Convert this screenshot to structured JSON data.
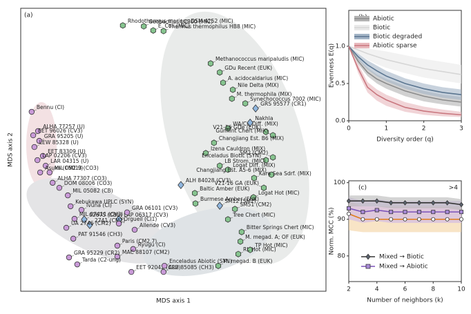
{
  "chart_data": [
    {
      "type": "scatter",
      "label": "(a)",
      "xlabel": "MDS axis 1",
      "ylabel": "MDS axis 2",
      "xlim": [
        0,
        100
      ],
      "ylim": [
        0,
        100
      ],
      "series": [
        {
          "marker": "hexagon",
          "color": "#86c48f",
          "labels": [
            "Rhodothermus marinus DSM 4252 (MIC)",
            "Geobacillus LC300 (MIC)",
            "E. Coli (MIC)",
            "Thermus thermophilus HB8 (MIC)",
            "Methanococcus maripaludis (MIC)",
            "GDu Recent (EUK)",
            "A. acidocaldarius (MIC)",
            "Nile Delta (MIX)",
            "M. thermophila (MIX)",
            "Synechococcus 7002 (MIC)",
            "WA/CC Diff. (MIX)",
            "V21-16 GDe (EUK)",
            "Gunflint Chert (MIX)",
            "Changjiang Est. B6 (MIX)",
            "SM2 (CM2)",
            "Izena Cauldron (MIX)",
            "Enceladus Biotic (SYN)",
            "LB Strom. (MIC)",
            "Logat Diff. (MIX)",
            "Changjiang Est. A5-6 (MIX)",
            "Kara Sea Sdrf. (MIX)",
            "V21-16 GA (EUK)",
            "Baltic Amber (EUK)",
            "Logat Hot (MIC)",
            "Burmese Amber (EUK)",
            "SM51 (CM2)",
            "Tree Chert (MIC)",
            "Bitter Springs Chert (MIC)",
            "M. megad. A; OF (EUK)",
            "TP Hot (MIC)",
            "RL Hot (MIC)",
            "M. megad. B (EUK)"
          ],
          "x": [
            33.6,
            40.5,
            43.6,
            47.0,
            62.5,
            65.5,
            66.6,
            69.8,
            69.5,
            73.9,
            68.2,
            80.7,
            83.0,
            63.6,
            83.0,
            60.9,
            80.7,
            65.5,
            68.2,
            82.5,
            76.8,
            80.0,
            57.3,
            76.6,
            57.5,
            70.5,
            68.2,
            72.7,
            72.3,
            75.5,
            71.6,
            65.0
          ],
          "y": [
            94.6,
            94.3,
            92.8,
            92.6,
            81.0,
            77.8,
            74.1,
            71.6,
            68.4,
            66.7,
            57.8,
            56.5,
            55.3,
            52.6,
            47.4,
            48.9,
            46.4,
            44.4,
            43.0,
            41.2,
            40.0,
            36.5,
            34.6,
            33.1,
            30.9,
            28.9,
            25.2,
            20.7,
            17.3,
            14.3,
            12.8,
            8.6
          ]
        },
        {
          "marker": "diamond",
          "color": "#8fb6de",
          "labels": [
            "GRS 95577 (CR1)",
            "Nakhla",
            "ALH 84028 (CV3)",
            "SM12 (SM2)",
            "LAP 06317 (CV3)",
            "02675 (CBb)",
            "2741 (CM2)"
          ],
          "x": [
            77.3,
            75.5,
            52.7,
            65.5,
            32.3,
            20.9,
            22.7
          ],
          "y": [
            64.9,
            59.8,
            37.5,
            30.1,
            25.2,
            25.2,
            23.2
          ]
        },
        {
          "marker": "circle",
          "color": "#c99ad8",
          "labels": [
            "Bennu (CI)",
            "ALHA 77257 (U)",
            "EET 96026 (CV3)",
            "GRA 95205 (U)",
            "LEW 85328 (U)",
            "EET 83309 (U)",
            "LAP 02206 (CV3)",
            "LAR 04315 (U)",
            "Asuka (CM2.9)",
            "MIL 05013 (CO3)",
            "ALHA 77307 (CO3)",
            "DOM 08006 (CO3)",
            "MIL 05082 (CB)",
            "Kebukawa UPLC (SYN)",
            "Ivuna (CI)",
            "MIL 07411 (CV3)",
            "UA 2746 (CM2)",
            "PAT 91546 (CH3)",
            "GRA 06101 (CV3)",
            "Orgueil (CI1)",
            "Allende (CV3)",
            "Paris (CM2.7)",
            "Ryugu (CI)",
            "MAC 88107 (CM2)",
            "GRA 95229 (CR2)",
            "Tarda (C2-ung)",
            "EET 92042 (CR2)",
            "Enceladus Abiotic (SYN)",
            "ALH 85085 (CH3)"
          ],
          "x": [
            3.6,
            5.7,
            4.1,
            6.1,
            4.5,
            7.3,
            5.5,
            8.2,
            6.4,
            9.5,
            10.5,
            12.7,
            15.5,
            16.4,
            20.0,
            17.7,
            15.0,
            17.3,
            35.0,
            32.3,
            37.5,
            31.8,
            37.0,
            31.8,
            15.9,
            18.6,
            36.4,
            47.3,
            47.0
          ],
          "y": [
            63.7,
            56.8,
            55.3,
            53.3,
            51.1,
            47.9,
            46.4,
            44.4,
            42.0,
            42.0,
            38.3,
            36.5,
            33.8,
            29.9,
            28.6,
            25.4,
            22.2,
            18.3,
            27.7,
            23.7,
            21.5,
            15.8,
            14.6,
            11.9,
            11.6,
            9.1,
            6.4,
            8.6,
            6.4
          ]
        }
      ]
    },
    {
      "type": "line",
      "label": "(b)",
      "xlabel": "Diversity order (q)",
      "ylabel": "Evenness E(q)",
      "xlim": [
        0,
        3
      ],
      "ylim": [
        0,
        1
      ],
      "xticks": [
        0,
        1,
        2,
        3
      ],
      "yticks": [
        {
          "value": 0,
          "label": "0.0"
        },
        {
          "value": 0.5,
          "label": "0.5"
        },
        {
          "value": 1,
          "label": "1.0"
        }
      ],
      "x": [
        0,
        0.25,
        0.5,
        0.75,
        1,
        1.5,
        2,
        2.5,
        3
      ],
      "series": [
        {
          "name": "Abiotic",
          "color": "#8c8c8c",
          "band_color": "#b3b3b3",
          "values": [
            1,
            0.8,
            0.65,
            0.56,
            0.5,
            0.4,
            0.33,
            0.28,
            0.25
          ],
          "lower": [
            1,
            0.76,
            0.6,
            0.5,
            0.43,
            0.33,
            0.26,
            0.22,
            0.19
          ],
          "upper": [
            1,
            0.84,
            0.71,
            0.62,
            0.56,
            0.47,
            0.4,
            0.35,
            0.32
          ]
        },
        {
          "name": "Biotic",
          "color": "#d6d6d6",
          "band_color": "#e9e9e9",
          "values": [
            1,
            0.95,
            0.9,
            0.86,
            0.82,
            0.76,
            0.7,
            0.66,
            0.62
          ],
          "lower": [
            1,
            0.9,
            0.82,
            0.76,
            0.71,
            0.64,
            0.58,
            0.54,
            0.5
          ],
          "upper": [
            1,
            0.99,
            0.97,
            0.95,
            0.93,
            0.88,
            0.83,
            0.79,
            0.75
          ]
        },
        {
          "name": "Biotic degraded",
          "color": "#5a7590",
          "band_color": "#a3b4c6",
          "values": [
            1,
            0.86,
            0.75,
            0.67,
            0.6,
            0.5,
            0.43,
            0.38,
            0.35
          ],
          "lower": [
            1,
            0.82,
            0.69,
            0.6,
            0.53,
            0.43,
            0.36,
            0.31,
            0.28
          ],
          "upper": [
            1,
            0.9,
            0.81,
            0.74,
            0.67,
            0.57,
            0.5,
            0.45,
            0.42
          ]
        },
        {
          "name": "Abiotic sparse",
          "color": "#c9777f",
          "band_color": "#e8b8bc",
          "values": [
            1,
            0.7,
            0.45,
            0.35,
            0.28,
            0.18,
            0.13,
            0.1,
            0.08
          ],
          "lower": [
            1,
            0.64,
            0.38,
            0.27,
            0.2,
            0.12,
            0.08,
            0.06,
            0.05
          ],
          "upper": [
            1,
            0.76,
            0.52,
            0.42,
            0.35,
            0.25,
            0.19,
            0.15,
            0.12
          ]
        }
      ]
    },
    {
      "type": "line",
      "label": "(c)",
      "annotation": ">4",
      "xlabel": "Number of neighbors (k)",
      "ylabel": "Norm. MCC (%)",
      "xlim": [
        2,
        10
      ],
      "ylim": [
        73,
        100.5
      ],
      "xticks": [
        2,
        4,
        6,
        8,
        10
      ],
      "yticks": [
        80,
        90,
        100
      ],
      "x": [
        2,
        3,
        4,
        5,
        6,
        7,
        8,
        9,
        10
      ],
      "series": [
        {
          "color": "#e07b1a",
          "band_color": "#f3d2a0",
          "marker": "circle",
          "marker_color": "#ffffff",
          "values": [
            91.5,
            90,
            90,
            90,
            90,
            90,
            90,
            90,
            90
          ],
          "lower": [
            87,
            86.5,
            86.5,
            86.5,
            86.5,
            86.5,
            86.5,
            86.5,
            86.5
          ],
          "upper": [
            95,
            93.5,
            93.5,
            93.5,
            93.5,
            93.5,
            93.5,
            93.5,
            93.5
          ]
        },
        {
          "name": "Mixed → Abiotic",
          "color": "#7b52b9",
          "band_color": "#cdb6ea",
          "marker": "square",
          "marker_color": "#a98ad8",
          "values": [
            93,
            92,
            92.5,
            92,
            92,
            92,
            92,
            92,
            92
          ],
          "lower": [
            90,
            89,
            89.5,
            89,
            89,
            89,
            89,
            89,
            89
          ],
          "upper": [
            96,
            95,
            95.5,
            95,
            95,
            95,
            95,
            95,
            95
          ]
        },
        {
          "name": "Mixed → Biotic",
          "color": "#333333",
          "band_color": "#b8b8b8",
          "marker": "diamond",
          "marker_color": "#5c6470",
          "values": [
            95,
            95,
            95,
            94.5,
            94.5,
            94.5,
            94.5,
            94.5,
            94
          ],
          "lower": [
            93.5,
            93.5,
            93.5,
            93,
            93,
            93,
            93,
            93,
            92.5
          ],
          "upper": [
            96.5,
            96.5,
            96.5,
            96,
            96,
            96,
            96,
            96,
            95.5
          ]
        }
      ]
    }
  ]
}
